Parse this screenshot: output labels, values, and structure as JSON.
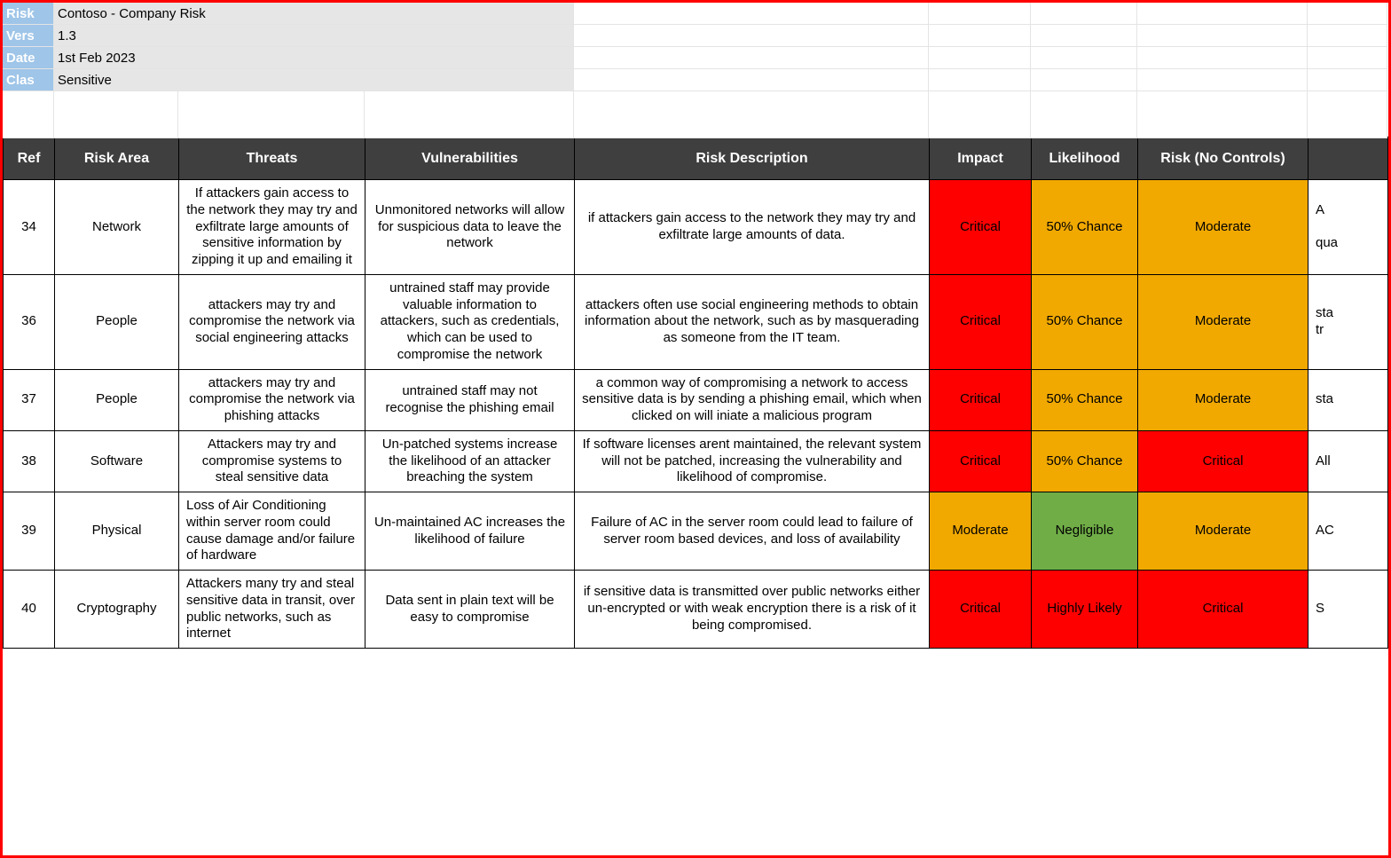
{
  "colors": {
    "critical": "#ff0000",
    "moderate": "#f1a900",
    "negligible": "#70ad47",
    "highly_likely": "#ff0000",
    "outer_border": "#ff0000",
    "header_bg": "#3f3f3f",
    "header_fg": "#ffffff",
    "meta_label_bg": "#9fc5e8",
    "meta_value_bg": "#e6e6e6",
    "grid_line": "#e4e4e4"
  },
  "meta": {
    "labels": {
      "risk": "Risk",
      "vers": "Vers",
      "date": "Date",
      "clas": "Clas"
    },
    "values": {
      "risk": "Contoso - Company Risk",
      "vers": "1.3",
      "date": "1st Feb 2023",
      "clas": "Sensitive"
    }
  },
  "columns": {
    "ref": "Ref",
    "area": "Risk Area",
    "threats": "Threats",
    "vuln": "Vulnerabilities",
    "desc": "Risk Description",
    "impact": "Impact",
    "like": "Likelihood",
    "rnc": "Risk (No Controls)",
    "extra": ""
  },
  "rows": [
    {
      "ref": "34",
      "area": "Network",
      "threats": "If attackers gain access to the network they may try and exfiltrate large amounts of sensitive information by zipping it up and emailing it",
      "vuln": "Unmonitored networks will allow for suspicious data to leave the network",
      "desc": "if attackers gain access to the network they may try and exfiltrate large amounts of data.",
      "impact": {
        "label": "Critical",
        "color": "#ff0000"
      },
      "like": {
        "label": "50% Chance",
        "color": "#f1a900"
      },
      "rnc": {
        "label": "Moderate",
        "color": "#f1a900"
      },
      "extra": "A\n\nqua"
    },
    {
      "ref": "36",
      "area": "People",
      "threats": "attackers may try and compromise the network via social engineering attacks",
      "vuln": "untrained staff may provide valuable information to attackers, such as credentials, which can be used to compromise the network",
      "desc": "attackers often use social engineering methods to obtain information about the network, such as by masquerading as someone from the IT team.",
      "impact": {
        "label": "Critical",
        "color": "#ff0000"
      },
      "like": {
        "label": "50% Chance",
        "color": "#f1a900"
      },
      "rnc": {
        "label": "Moderate",
        "color": "#f1a900"
      },
      "extra": "sta\ntr"
    },
    {
      "ref": "37",
      "area": "People",
      "threats": "attackers may try and compromise the network via phishing attacks",
      "vuln": "untrained staff may not recognise the phishing email",
      "desc": "a common way of compromising a network to access sensitive data is by sending a phishing email, which when clicked on will iniate a malicious program",
      "impact": {
        "label": "Critical",
        "color": "#ff0000"
      },
      "like": {
        "label": "50% Chance",
        "color": "#f1a900"
      },
      "rnc": {
        "label": "Moderate",
        "color": "#f1a900"
      },
      "extra": "sta"
    },
    {
      "ref": "38",
      "area": "Software",
      "threats": "Attackers may try and compromise systems to steal sensitive data",
      "vuln": "Un-patched systems increase the likelihood of an attacker breaching the system",
      "desc": "If software licenses arent maintained, the relevant system will not be patched, increasing the vulnerability and likelihood of compromise.",
      "impact": {
        "label": "Critical",
        "color": "#ff0000"
      },
      "like": {
        "label": "50% Chance",
        "color": "#f1a900"
      },
      "rnc": {
        "label": "Critical",
        "color": "#ff0000"
      },
      "extra": "All"
    },
    {
      "ref": "39",
      "area": "Physical",
      "threats": "Loss of Air Conditioning within server room could cause damage and/or failure of hardware",
      "vuln": "Un-maintained AC increases the likelihood of failure",
      "desc": "Failure of AC in the server room could lead to failure of server room based devices, and loss of availability",
      "impact": {
        "label": "Moderate",
        "color": "#f1a900"
      },
      "like": {
        "label": "Negligible",
        "color": "#70ad47"
      },
      "rnc": {
        "label": "Moderate",
        "color": "#f1a900"
      },
      "extra": "AC"
    },
    {
      "ref": "40",
      "area": "Cryptography",
      "threats": "Attackers many try and steal sensitive data in transit, over public networks, such as internet",
      "vuln": "Data sent in plain text will be easy to compromise",
      "desc": "if sensitive data is transmitted over public networks either un-encrypted or with weak encryption there is a risk of it being compromised.",
      "impact": {
        "label": "Critical",
        "color": "#ff0000"
      },
      "like": {
        "label": "Highly Likely",
        "color": "#ff0000"
      },
      "rnc": {
        "label": "Critical",
        "color": "#ff0000"
      },
      "extra": "S"
    }
  ]
}
